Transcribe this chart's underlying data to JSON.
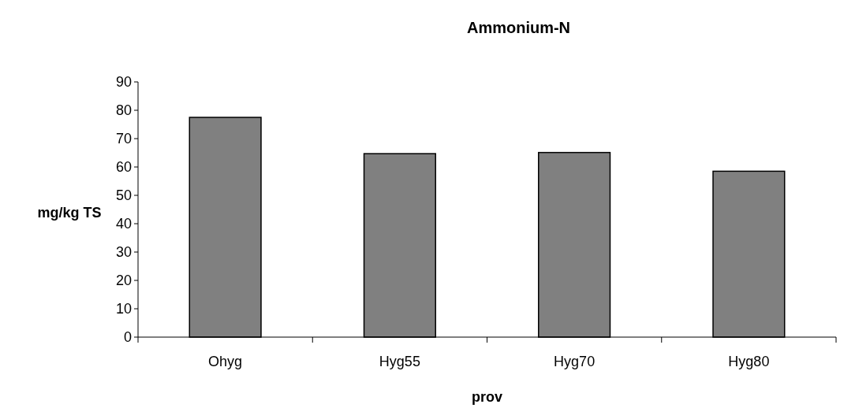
{
  "chart_data": {
    "type": "bar",
    "title": "Ammonium-N",
    "xlabel": "prov",
    "ylabel": "mg/kg TS",
    "categories": [
      "Ohyg",
      "Hyg55",
      "Hyg70",
      "Hyg80"
    ],
    "values": [
      77.5,
      64.7,
      65.1,
      58.5
    ],
    "color": "#808080",
    "ylim": [
      0,
      90
    ],
    "yticks": [
      0,
      10,
      20,
      30,
      40,
      50,
      60,
      70,
      80,
      90
    ],
    "grid": false
  }
}
